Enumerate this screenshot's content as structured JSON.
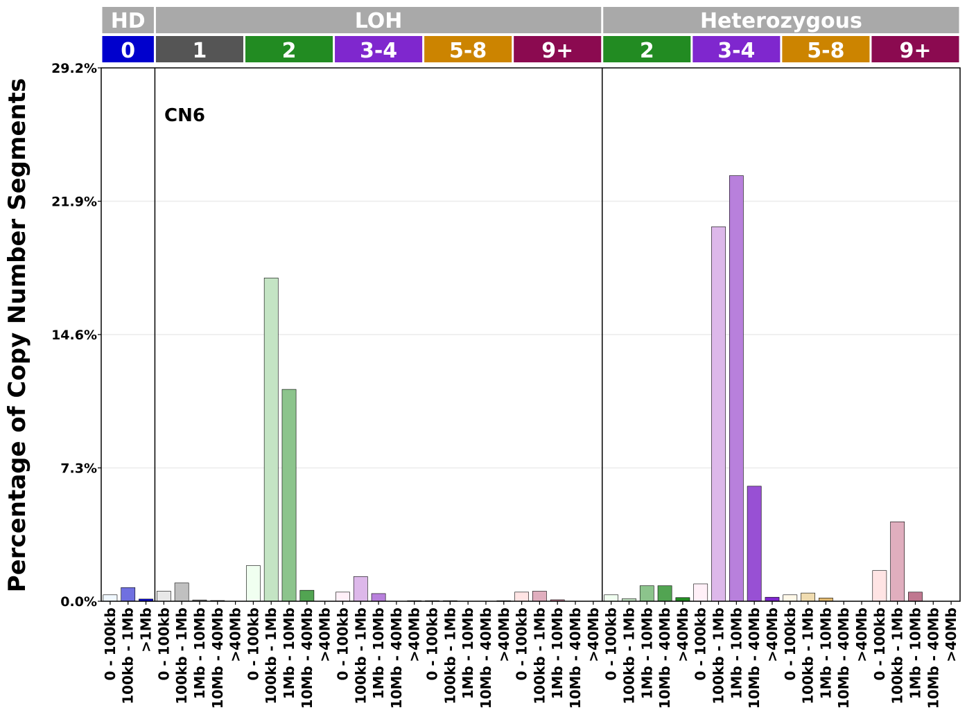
{
  "chart_data": {
    "type": "bar",
    "ylabel": "Percentage of Copy Number Segments",
    "annotation": "CN6",
    "ylim": [
      0,
      29.2
    ],
    "yticks": [
      "0.0%",
      "7.3%",
      "14.6%",
      "21.9%",
      "29.2%"
    ],
    "ytick_values": [
      0,
      7.3,
      14.6,
      21.9,
      29.2
    ],
    "grid": "horizontal",
    "top_groups": [
      {
        "label": "HD",
        "bars": 3
      },
      {
        "label": "LOH",
        "bars": 25
      },
      {
        "label": "Heterozygous",
        "bars": 20
      }
    ],
    "cn_groups": [
      {
        "label": "0",
        "bars": 3,
        "color": "#0000CD"
      },
      {
        "label": "1",
        "bars": 5,
        "color": "#555555"
      },
      {
        "label": "2",
        "bars": 5,
        "color": "#228B22"
      },
      {
        "label": "3-4",
        "bars": 5,
        "color": "#7F27CE"
      },
      {
        "label": "5-8",
        "bars": 5,
        "color": "#CC8400"
      },
      {
        "label": "9+",
        "bars": 5,
        "color": "#8B0A50"
      },
      {
        "label": "2",
        "bars": 5,
        "color": "#228B22"
      },
      {
        "label": "3-4",
        "bars": 5,
        "color": "#7F27CE"
      },
      {
        "label": "5-8",
        "bars": 5,
        "color": "#CC8400"
      },
      {
        "label": "9+",
        "bars": 5,
        "color": "#8B0A50"
      }
    ],
    "categories": [
      "0 - 100kb",
      "100kb - 1Mb",
      ">1Mb",
      "0 - 100kb",
      "100kb - 1Mb",
      "1Mb - 10Mb",
      "10Mb - 40Mb",
      ">40Mb",
      "0 - 100kb",
      "100kb - 1Mb",
      "1Mb - 10Mb",
      "10Mb - 40Mb",
      ">40Mb",
      "0 - 100kb",
      "100kb - 1Mb",
      "1Mb - 10Mb",
      "10Mb - 40Mb",
      ">40Mb",
      "0 - 100kb",
      "100kb - 1Mb",
      "1Mb - 10Mb",
      "10Mb - 40Mb",
      ">40Mb",
      "0 - 100kb",
      "100kb - 1Mb",
      "1Mb - 10Mb",
      "10Mb - 40Mb",
      ">40Mb",
      "0 - 100kb",
      "100kb - 1Mb",
      "1Mb - 10Mb",
      "10Mb - 40Mb",
      ">40Mb",
      "0 - 100kb",
      "100kb - 1Mb",
      "1Mb - 10Mb",
      "10Mb - 40Mb",
      ">40Mb",
      "0 - 100kb",
      "100kb - 1Mb",
      "1Mb - 10Mb",
      "10Mb - 40Mb",
      ">40Mb",
      "0 - 100kb",
      "100kb - 1Mb",
      "1Mb - 10Mb",
      "10Mb - 40Mb",
      ">40Mb"
    ],
    "values": [
      0.35,
      0.75,
      0.12,
      0.55,
      1.0,
      0.07,
      0.04,
      0,
      1.95,
      17.7,
      11.6,
      0.6,
      0,
      0.5,
      1.35,
      0.42,
      0.0,
      0.03,
      0.03,
      0.03,
      0,
      0,
      0.03,
      0.5,
      0.55,
      0.08,
      0,
      0,
      0.35,
      0.14,
      0.85,
      0.85,
      0.2,
      0.95,
      20.5,
      23.3,
      6.3,
      0.22,
      0.35,
      0.45,
      0.18,
      0,
      0,
      1.68,
      4.35,
      0.5,
      0,
      0
    ],
    "bar_colors": [
      "#F0F8FF",
      "#7070E0",
      "#0000CD",
      "#E8E8E8",
      "#C0C0C0",
      "#888888",
      "#555555",
      "#333333",
      "#F0FFF0",
      "#C4E4C4",
      "#8CC48C",
      "#52A452",
      "#228B22",
      "#FFF0F8",
      "#DDB8EA",
      "#B880DC",
      "#9850D4",
      "#7F27CE",
      "#FFF8E8",
      "#F0DCB0",
      "#E0B870",
      "#D49C30",
      "#CC8400",
      "#FFE4E4",
      "#E0AEBE",
      "#C07890",
      "#A43A6C",
      "#8B0A50",
      "#F0FFF0",
      "#C4E4C4",
      "#8CC48C",
      "#52A452",
      "#228B22",
      "#FFF0F8",
      "#DDB8EA",
      "#B880DC",
      "#9850D4",
      "#7F27CE",
      "#FFF8E8",
      "#F0DCB0",
      "#E0B870",
      "#D49C30",
      "#CC8400",
      "#FFE4E4",
      "#E0AEBE",
      "#C07890",
      "#A43A6C",
      "#8B0A50"
    ],
    "header_color": "#A9A9A9"
  }
}
